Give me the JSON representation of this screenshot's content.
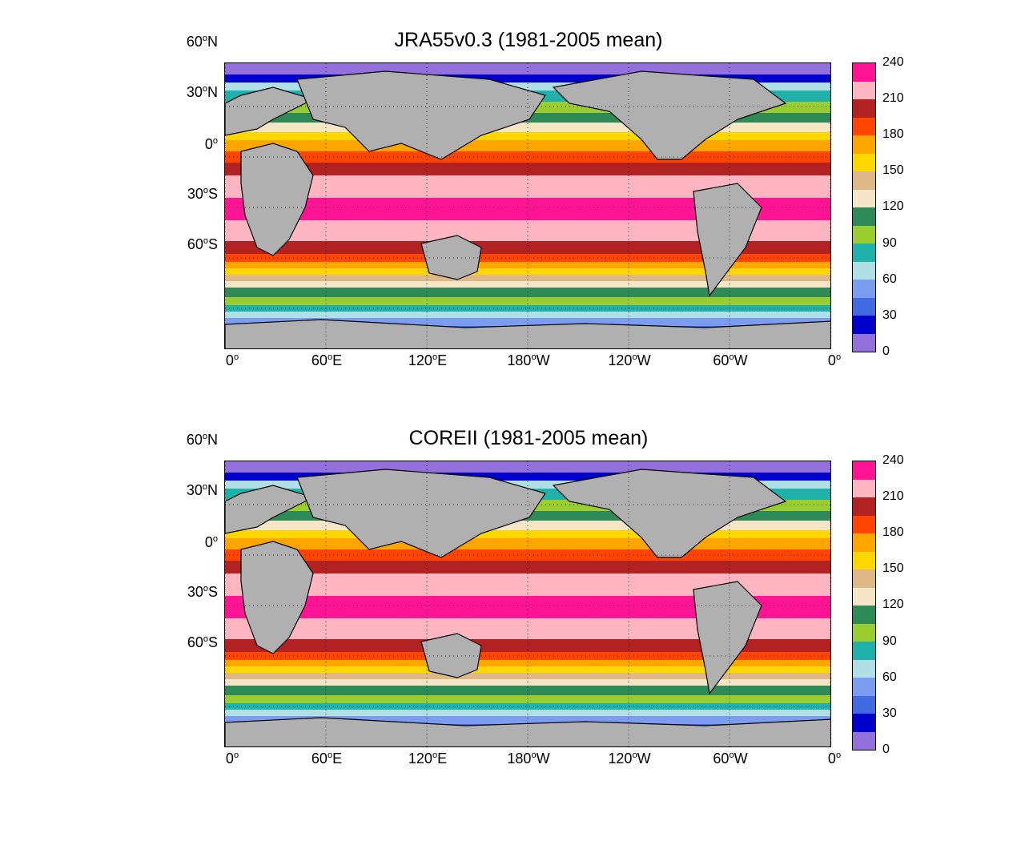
{
  "colors": {
    "land": "#b0b0b0",
    "ice": "#ffffff",
    "levels": [
      "#9370db",
      "#0000cd",
      "#4169e1",
      "#7b9cf0",
      "#b0e0e6",
      "#20b2aa",
      "#9acd32",
      "#2e8b57",
      "#f5e6c8",
      "#deb887",
      "#ffd700",
      "#ffa500",
      "#ff4500",
      "#b22222",
      "#ffb6c1",
      "#ff1493"
    ]
  },
  "colorbar": {
    "tick_labels": [
      "240",
      "210",
      "180",
      "150",
      "120",
      "90",
      "60",
      "30",
      "0"
    ]
  },
  "axes": {
    "lat_ticks": [
      {
        "deg": "60",
        "hem": "N"
      },
      {
        "deg": "30",
        "hem": "N"
      },
      {
        "deg": "0",
        "hem": ""
      },
      {
        "deg": "30",
        "hem": "S"
      },
      {
        "deg": "60",
        "hem": "S"
      }
    ],
    "lon_ticks": [
      {
        "deg": "0",
        "hem": ""
      },
      {
        "deg": "60",
        "hem": "E"
      },
      {
        "deg": "120",
        "hem": "E"
      },
      {
        "deg": "180",
        "hem": "W"
      },
      {
        "deg": "120",
        "hem": "W"
      },
      {
        "deg": "60",
        "hem": "W"
      },
      {
        "deg": "0",
        "hem": ""
      }
    ]
  },
  "panels": [
    {
      "title": "JRA55v0.3 (1981-2005 mean)"
    },
    {
      "title": "COREII (1981-2005 mean)"
    }
  ]
}
